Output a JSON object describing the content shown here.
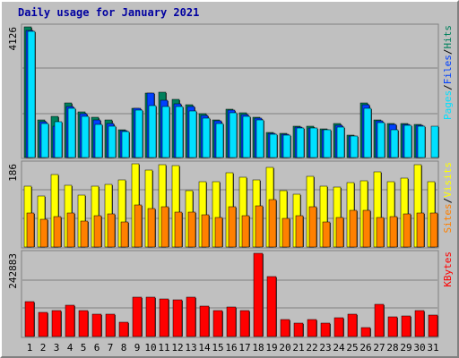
{
  "title": "Daily usage for January 2021",
  "colors": {
    "background": "#c0c0c0",
    "title": "#0000a0",
    "hits": "#00805c",
    "files": "#0040ff",
    "pages": "#00e0ff",
    "visits": "#ffff00",
    "sites": "#ff8000",
    "kbytes": "#ff0000",
    "weekend_label": "#00805c",
    "weekday_label": "#000000"
  },
  "chart_data": [
    {
      "type": "bar",
      "name": "hits-files-pages",
      "max_label": "4126",
      "ylim": [
        0,
        4126
      ],
      "legend": [
        {
          "text": "Pages",
          "color": "#00e0ff"
        },
        {
          "text": "/",
          "color": "#000000"
        },
        {
          "text": "Files",
          "color": "#0040ff"
        },
        {
          "text": "/",
          "color": "#000000"
        },
        {
          "text": "Hits",
          "color": "#00805c"
        }
      ],
      "categories": [
        "1",
        "2",
        "3",
        "4",
        "5",
        "6",
        "7",
        "8",
        "9",
        "10",
        "11",
        "12",
        "13",
        "14",
        "15",
        "16",
        "17",
        "18",
        "19",
        "20",
        "21",
        "22",
        "23",
        "24",
        "25",
        "26",
        "27",
        "28",
        "29",
        "30",
        "31"
      ],
      "weekend": [
        false,
        true,
        true,
        false,
        false,
        false,
        false,
        false,
        true,
        true,
        false,
        false,
        false,
        false,
        false,
        true,
        true,
        false,
        false,
        false,
        false,
        false,
        true,
        true,
        false,
        false,
        false,
        false,
        false,
        true,
        true
      ],
      "series": [
        {
          "name": "Hits",
          "values": [
            4126,
            1200,
            1290,
            1720,
            1440,
            1270,
            1200,
            890,
            1560,
            2030,
            2060,
            1830,
            1680,
            1380,
            1200,
            1530,
            1410,
            1270,
            790,
            750,
            1000,
            980,
            900,
            1070,
            710,
            1720,
            1200,
            1080,
            1070,
            1040,
            0
          ]
        },
        {
          "name": "Files",
          "values": [
            4000,
            1130,
            1000,
            1600,
            1380,
            1180,
            1060,
            850,
            1560,
            2030,
            1800,
            1700,
            1620,
            1320,
            1160,
            1490,
            1360,
            1230,
            760,
            730,
            950,
            920,
            890,
            1020,
            690,
            1680,
            1150,
            1050,
            1040,
            1010,
            0
          ]
        },
        {
          "name": "Pages",
          "values": [
            3990,
            1060,
            1130,
            1560,
            1300,
            1050,
            1000,
            820,
            1490,
            1650,
            1620,
            1600,
            1480,
            1250,
            1080,
            1400,
            1310,
            1180,
            740,
            700,
            930,
            920,
            880,
            970,
            670,
            1560,
            1090,
            890,
            1030,
            1000,
            980
          ]
        }
      ]
    },
    {
      "type": "bar",
      "name": "visits-sites",
      "max_label": "186",
      "ylim": [
        0,
        186
      ],
      "legend": [
        {
          "text": "Sites",
          "color": "#ff8000"
        },
        {
          "text": "/",
          "color": "#000000"
        },
        {
          "text": "Visits",
          "color": "#ffff00"
        }
      ],
      "categories": [
        "1",
        "2",
        "3",
        "4",
        "5",
        "6",
        "7",
        "8",
        "9",
        "10",
        "11",
        "12",
        "13",
        "14",
        "15",
        "16",
        "17",
        "18",
        "19",
        "20",
        "21",
        "22",
        "23",
        "24",
        "25",
        "26",
        "27",
        "28",
        "29",
        "30",
        "31"
      ],
      "series": [
        {
          "name": "Visits",
          "values": [
            135,
            113,
            162,
            138,
            115,
            135,
            140,
            150,
            186,
            172,
            183,
            182,
            126,
            145,
            145,
            165,
            156,
            150,
            178,
            127,
            118,
            158,
            136,
            134,
            144,
            148,
            167,
            145,
            154,
            183,
            146
          ]
        },
        {
          "name": "Sites",
          "values": [
            76,
            61,
            67,
            75,
            57,
            70,
            74,
            55,
            94,
            85,
            90,
            78,
            78,
            72,
            65,
            89,
            70,
            91,
            105,
            64,
            69,
            89,
            55,
            65,
            81,
            82,
            65,
            68,
            74,
            75,
            76
          ]
        }
      ]
    },
    {
      "type": "bar",
      "name": "kbytes",
      "max_label": "242883",
      "ylim": [
        0,
        242883
      ],
      "legend": [
        {
          "text": "KBytes",
          "color": "#ff0000"
        }
      ],
      "categories": [
        "1",
        "2",
        "3",
        "4",
        "5",
        "6",
        "7",
        "8",
        "9",
        "10",
        "11",
        "12",
        "13",
        "14",
        "15",
        "16",
        "17",
        "18",
        "19",
        "20",
        "21",
        "22",
        "23",
        "24",
        "25",
        "26",
        "27",
        "28",
        "29",
        "30",
        "31"
      ],
      "series": [
        {
          "name": "KBytes",
          "values": [
            101000,
            70000,
            76000,
            92000,
            75000,
            65000,
            64000,
            43000,
            115000,
            116000,
            110000,
            108000,
            115000,
            88000,
            76000,
            87000,
            77000,
            242883,
            175000,
            50000,
            38000,
            50000,
            39000,
            54000,
            66000,
            25000,
            95000,
            58000,
            59000,
            76000,
            63000
          ]
        }
      ]
    }
  ]
}
